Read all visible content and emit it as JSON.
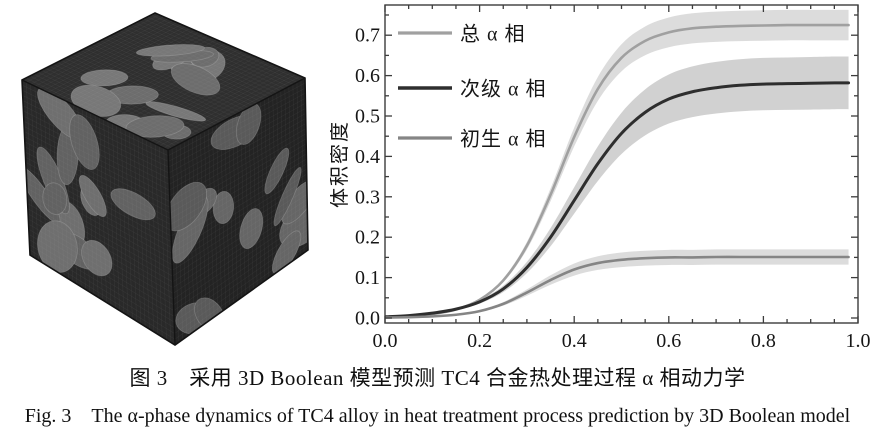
{
  "figure": {
    "caption_zh": "图 3　采用 3D Boolean 模型预测 TC4 合金热处理过程 α 相动力学",
    "caption_en": "Fig. 3　The α-phase dynamics of TC4 alloy in heat treatment process prediction by 3D Boolean model"
  },
  "chart_data": {
    "type": "line",
    "title": "",
    "xlabel": "",
    "ylabel": "体积密度",
    "xlim": [
      0.0,
      1.0
    ],
    "ylim": [
      0.0,
      0.775
    ],
    "grid": false,
    "legend_position": "top-left",
    "x_ticks": [
      "0.0",
      "0.2",
      "0.4",
      "0.6",
      "0.8",
      "1.0"
    ],
    "y_ticks": [
      "0.0",
      "0.1",
      "0.2",
      "0.3",
      "0.4",
      "0.5",
      "0.6",
      "0.7"
    ],
    "x": [
      0,
      0.05,
      0.1,
      0.15,
      0.2,
      0.25,
      0.3,
      0.35,
      0.4,
      0.45,
      0.5,
      0.55,
      0.6,
      0.65,
      0.7,
      0.75,
      0.8,
      0.85,
      0.9,
      0.95,
      0.98
    ],
    "series": [
      {
        "name": "总 α 相",
        "color": "#a0a0a0",
        "width": 2.6,
        "band_color": "#9a9a9a",
        "band_opacity": 0.35,
        "band_rel": 0.052,
        "values": [
          0.003,
          0.004,
          0.01,
          0.021,
          0.045,
          0.093,
          0.179,
          0.305,
          0.448,
          0.567,
          0.644,
          0.686,
          0.707,
          0.717,
          0.721,
          0.723,
          0.724,
          0.725,
          0.725,
          0.725,
          0.725
        ]
      },
      {
        "name": "次级 α 相",
        "color": "#2e2e2e",
        "width": 3.0,
        "band_color": "#9a9a9a",
        "band_opacity": 0.45,
        "band_rel": 0.112,
        "values": [
          0.003,
          0.006,
          0.012,
          0.022,
          0.04,
          0.072,
          0.125,
          0.2,
          0.291,
          0.382,
          0.457,
          0.509,
          0.542,
          0.56,
          0.57,
          0.576,
          0.579,
          0.58,
          0.581,
          0.582,
          0.582
        ]
      },
      {
        "name": "初生 α 相",
        "color": "#858585",
        "width": 2.6,
        "band_color": "#9a9a9a",
        "band_opacity": 0.35,
        "band_rel": 0.125,
        "values": [
          0.001,
          0.002,
          0.004,
          0.008,
          0.017,
          0.035,
          0.063,
          0.094,
          0.12,
          0.136,
          0.144,
          0.148,
          0.15,
          0.15,
          0.151,
          0.151,
          0.151,
          0.151,
          0.151,
          0.151,
          0.151
        ]
      }
    ]
  }
}
